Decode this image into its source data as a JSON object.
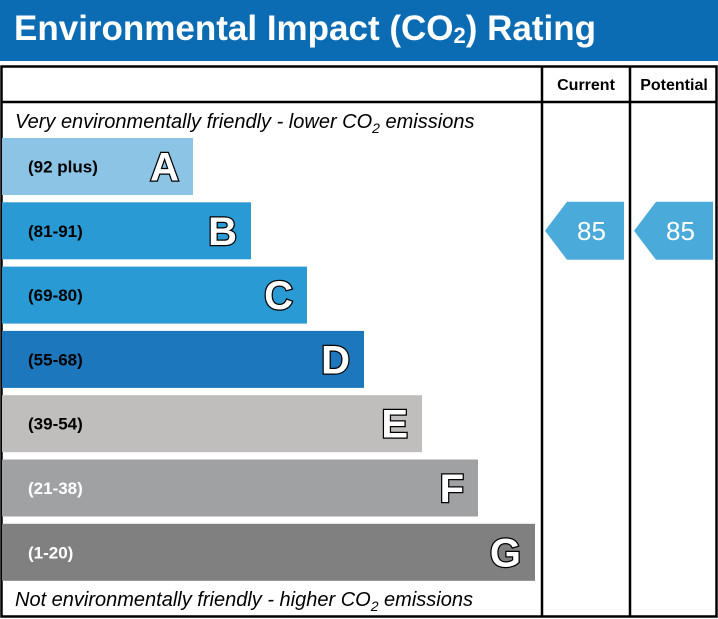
{
  "title": {
    "pre": "Environmental Impact (CO",
    "sub": "2",
    "post": ") Rating"
  },
  "chart_data": {
    "type": "bar",
    "title": "Environmental Impact (CO2) Rating",
    "columns": {
      "current": "Current",
      "potential": "Potential"
    },
    "top_note": {
      "pre": "Very environmentally friendly - lower CO",
      "sub": "2",
      "post": " emissions"
    },
    "bottom_note": {
      "pre": "Not environmentally friendly - higher CO",
      "sub": "2",
      "post": " emissions"
    },
    "bands": [
      {
        "letter": "A",
        "range": "(92 plus)",
        "min": 92,
        "max": 100,
        "color": "#8cc4e6",
        "text_color": "#000000"
      },
      {
        "letter": "B",
        "range": "(81-91)",
        "min": 81,
        "max": 91,
        "color": "#2a9ad4",
        "text_color": "#000000"
      },
      {
        "letter": "C",
        "range": "(69-80)",
        "min": 69,
        "max": 80,
        "color": "#2a9ad4",
        "text_color": "#000000"
      },
      {
        "letter": "D",
        "range": "(55-68)",
        "min": 55,
        "max": 68,
        "color": "#1c77bc",
        "text_color": "#000000"
      },
      {
        "letter": "E",
        "range": "(39-54)",
        "min": 39,
        "max": 54,
        "color": "#bfbebd",
        "text_color": "#000000"
      },
      {
        "letter": "F",
        "range": "(21-38)",
        "min": 21,
        "max": 38,
        "color": "#a0a1a3",
        "text_color": "#ffffff"
      },
      {
        "letter": "G",
        "range": "(1-20)",
        "min": 1,
        "max": 20,
        "color": "#808080",
        "text_color": "#ffffff"
      }
    ],
    "current": 85,
    "potential": 85,
    "arrow_color": "#4aabdb"
  }
}
